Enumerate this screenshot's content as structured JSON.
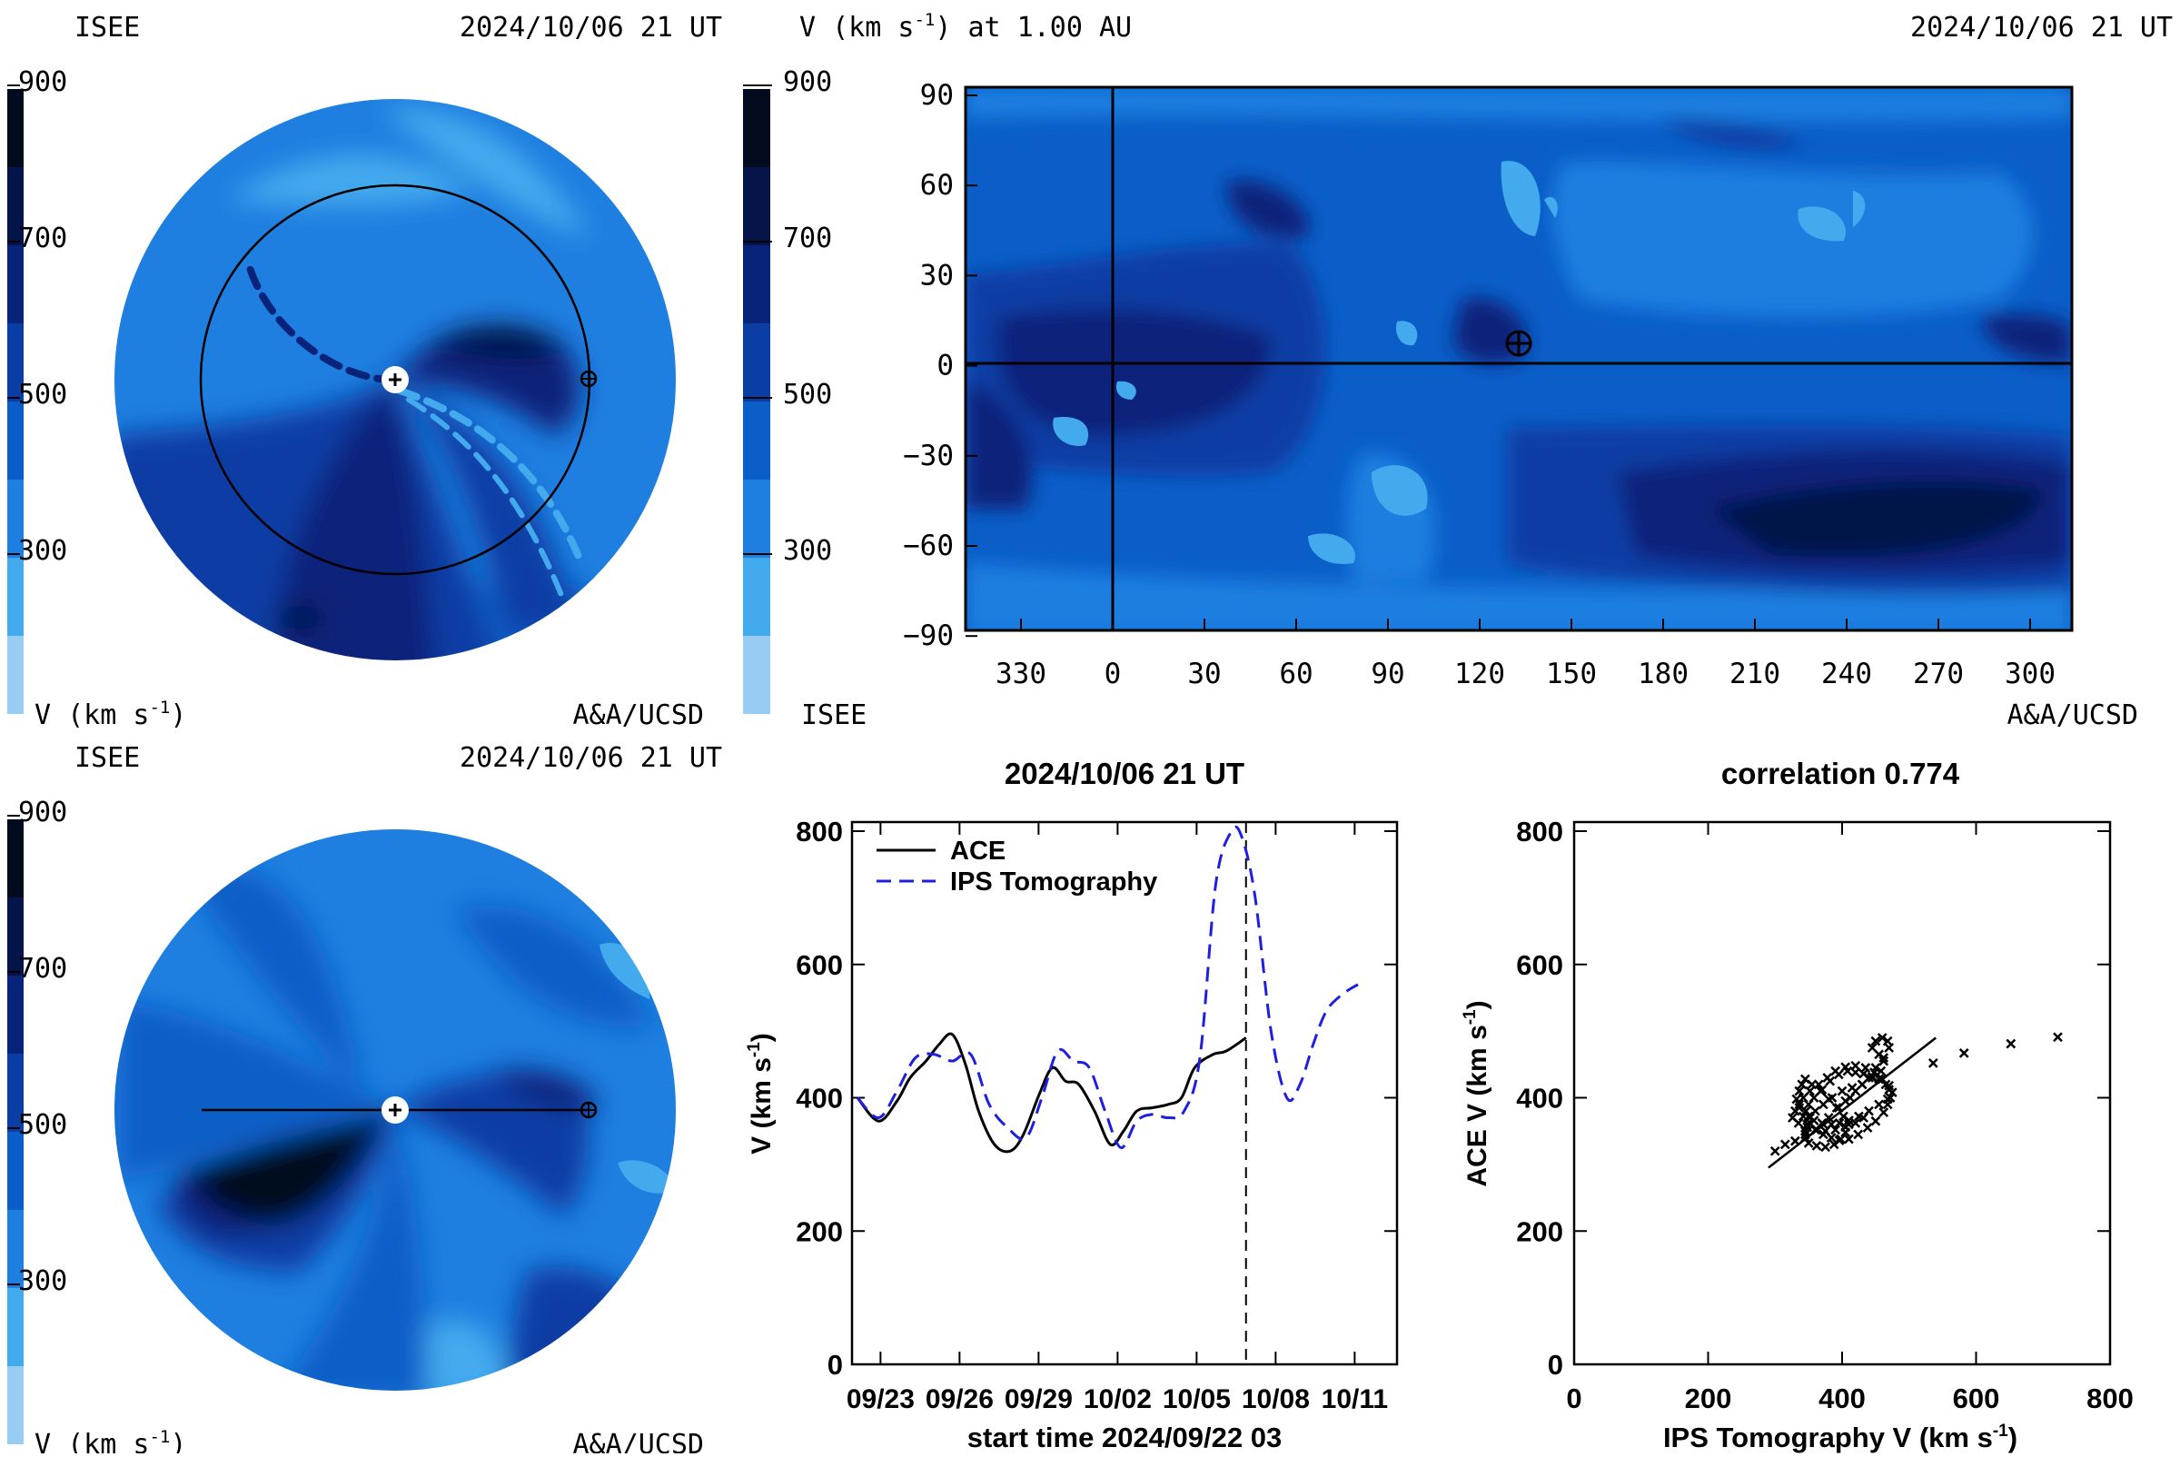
{
  "palette": [
    "#99ccf2",
    "#44aaee",
    "#1e7fe0",
    "#0b5ec8",
    "#0a3ea4",
    "#07237a",
    "#061549",
    "#020a1e"
  ],
  "colorbar_top_left": {
    "label_top": "ISEE",
    "ticks": [
      "900",
      "700",
      "500",
      "300"
    ],
    "label_bottom": "V (km s",
    "label_bottom_sup": "-1",
    "label_bottom_end": ")"
  },
  "colorbar_top_mid": {
    "title": "V (km s",
    "title_sup": "-1",
    "title_end": ") at 1.00 AU",
    "ticks": [
      "900",
      "700",
      "500",
      "300"
    ],
    "label_bottom": "ISEE"
  },
  "colorbar_bottom_left": {
    "label_top": "ISEE",
    "ticks": [
      "900",
      "700",
      "500",
      "300"
    ],
    "label_bottom": "V (km s",
    "label_bottom_sup": "-1",
    "label_bottom_end": ")"
  },
  "ecliptic_view": {
    "timestamp": "2024/10/06 21 UT",
    "credit": "A&A/UCSD"
  },
  "meridional_view": {
    "timestamp": "2024/10/06 21 UT",
    "credit": "A&A/UCSD"
  },
  "map_view": {
    "timestamp": "2024/10/06 21 UT",
    "credit": "A&A/UCSD",
    "x_ticks": [
      "330",
      "0",
      "30",
      "60",
      "90",
      "120",
      "150",
      "180",
      "210",
      "240",
      "270",
      "300"
    ],
    "y_ticks": [
      "90",
      "60",
      "30",
      "0",
      "−30",
      "−60",
      "−90"
    ]
  },
  "chart_data": [
    {
      "type": "line",
      "title": "2024/10/06 21 UT",
      "xlabel": "start time 2024/09/22 03",
      "ylabel": "V (km s",
      "ylabel_sup": "-1",
      "ylabel_end": ")",
      "ylim": [
        0,
        800
      ],
      "xlim": [
        0,
        20
      ],
      "y_ticks": [
        0,
        200,
        400,
        600,
        800
      ],
      "x_tick_values": [
        0.875,
        3.875,
        6.875,
        9.875,
        12.875,
        15.875,
        18.875
      ],
      "x_tick_labels": [
        "09/23",
        "09/26",
        "09/29",
        "10/02",
        "10/05",
        "10/08",
        "10/11"
      ],
      "current_time_marker": 14.75,
      "legend_position": "top-left",
      "series": [
        {
          "name": "ACE",
          "style": "solid",
          "color": "#000000",
          "x": [
            0,
            0.8,
            1.5,
            2.0,
            2.6,
            3.1,
            3.6,
            4.1,
            4.6,
            5.2,
            5.8,
            6.3,
            6.9,
            7.4,
            7.9,
            8.4,
            9.0,
            9.6,
            10.1,
            10.6,
            11.2,
            11.8,
            12.3,
            12.8,
            13.5,
            14.0,
            14.75
          ],
          "y": [
            400,
            365,
            395,
            430,
            455,
            480,
            495,
            450,
            380,
            330,
            320,
            345,
            405,
            445,
            425,
            420,
            380,
            330,
            350,
            380,
            385,
            390,
            400,
            445,
            465,
            470,
            490
          ]
        },
        {
          "name": "IPS Tomography",
          "style": "dashed",
          "color": "#1f1fe0",
          "x": [
            0,
            0.8,
            1.5,
            2.2,
            2.9,
            3.6,
            4.3,
            5.0,
            5.7,
            6.4,
            7.0,
            7.6,
            8.2,
            8.8,
            9.4,
            10.0,
            10.6,
            11.2,
            11.8,
            12.4,
            13.0,
            13.6,
            14.2,
            14.6,
            15.1,
            15.7,
            16.3,
            16.8,
            17.3,
            17.8,
            18.4,
            19.0
          ],
          "y": [
            400,
            370,
            410,
            460,
            465,
            455,
            465,
            390,
            355,
            340,
            400,
            470,
            455,
            445,
            380,
            325,
            365,
            375,
            370,
            380,
            460,
            720,
            800,
            790,
            700,
            500,
            400,
            420,
            480,
            530,
            555,
            570
          ]
        }
      ]
    },
    {
      "type": "scatter",
      "title": "correlation 0.774",
      "xlabel": "IPS Tomography V (km s",
      "xlabel_sup": "-1",
      "xlabel_end": ")",
      "ylabel": "ACE V (km s",
      "ylabel_sup": "-1",
      "ylabel_end": ")",
      "xlim": [
        0,
        800
      ],
      "ylim": [
        0,
        800
      ],
      "x_ticks": [
        0,
        200,
        400,
        600,
        800
      ],
      "y_ticks": [
        0,
        200,
        400,
        600,
        800
      ],
      "fit_line": {
        "x": [
          290,
          540
        ],
        "y": [
          295,
          490
        ]
      },
      "x": [
        300,
        315,
        330,
        345,
        360,
        372,
        380,
        395,
        405,
        412,
        420,
        430,
        440,
        450,
        462,
        470,
        468,
        460,
        450,
        445,
        455,
        462,
        458,
        445,
        430,
        415,
        400,
        385,
        372,
        360,
        352,
        348,
        345,
        345,
        350,
        362,
        375,
        388,
        398,
        405,
        410,
        402,
        392,
        380,
        368,
        355,
        345,
        340,
        336,
        332,
        336,
        342,
        352,
        362,
        372,
        384,
        396,
        410,
        424,
        438,
        450,
        462,
        468,
        472,
        470,
        465,
        455,
        445,
        432,
        420,
        408,
        395,
        382,
        370,
        358,
        350,
        346,
        350,
        358,
        370,
        384,
        396,
        410,
        425,
        440,
        455,
        468,
        475,
        470,
        460,
        448,
        435,
        420,
        405,
        390,
        378,
        365,
        352,
        342,
        336,
        330,
        326,
        335,
        348,
        362,
        375,
        390,
        405,
        420,
        432,
        536,
        582,
        652,
        722
      ],
      "y": [
        320,
        330,
        335,
        345,
        352,
        360,
        370,
        385,
        395,
        400,
        410,
        420,
        430,
        445,
        460,
        475,
        485,
        490,
        485,
        475,
        465,
        455,
        440,
        430,
        420,
        415,
        410,
        400,
        390,
        380,
        370,
        360,
        350,
        340,
        332,
        328,
        326,
        330,
        338,
        348,
        360,
        372,
        385,
        398,
        410,
        420,
        428,
        420,
        410,
        398,
        385,
        372,
        362,
        352,
        345,
        340,
        336,
        338,
        345,
        355,
        365,
        378,
        390,
        400,
        412,
        420,
        428,
        432,
        436,
        438,
        440,
        435,
        425,
        412,
        400,
        390,
        380,
        372,
        366,
        362,
        360,
        362,
        366,
        372,
        380,
        390,
        398,
        408,
        418,
        428,
        438,
        445,
        448,
        446,
        440,
        430,
        420,
        410,
        400,
        390,
        380,
        370,
        362,
        356,
        352,
        350,
        352,
        356,
        362,
        370,
        452,
        467,
        481,
        491
      ]
    }
  ]
}
